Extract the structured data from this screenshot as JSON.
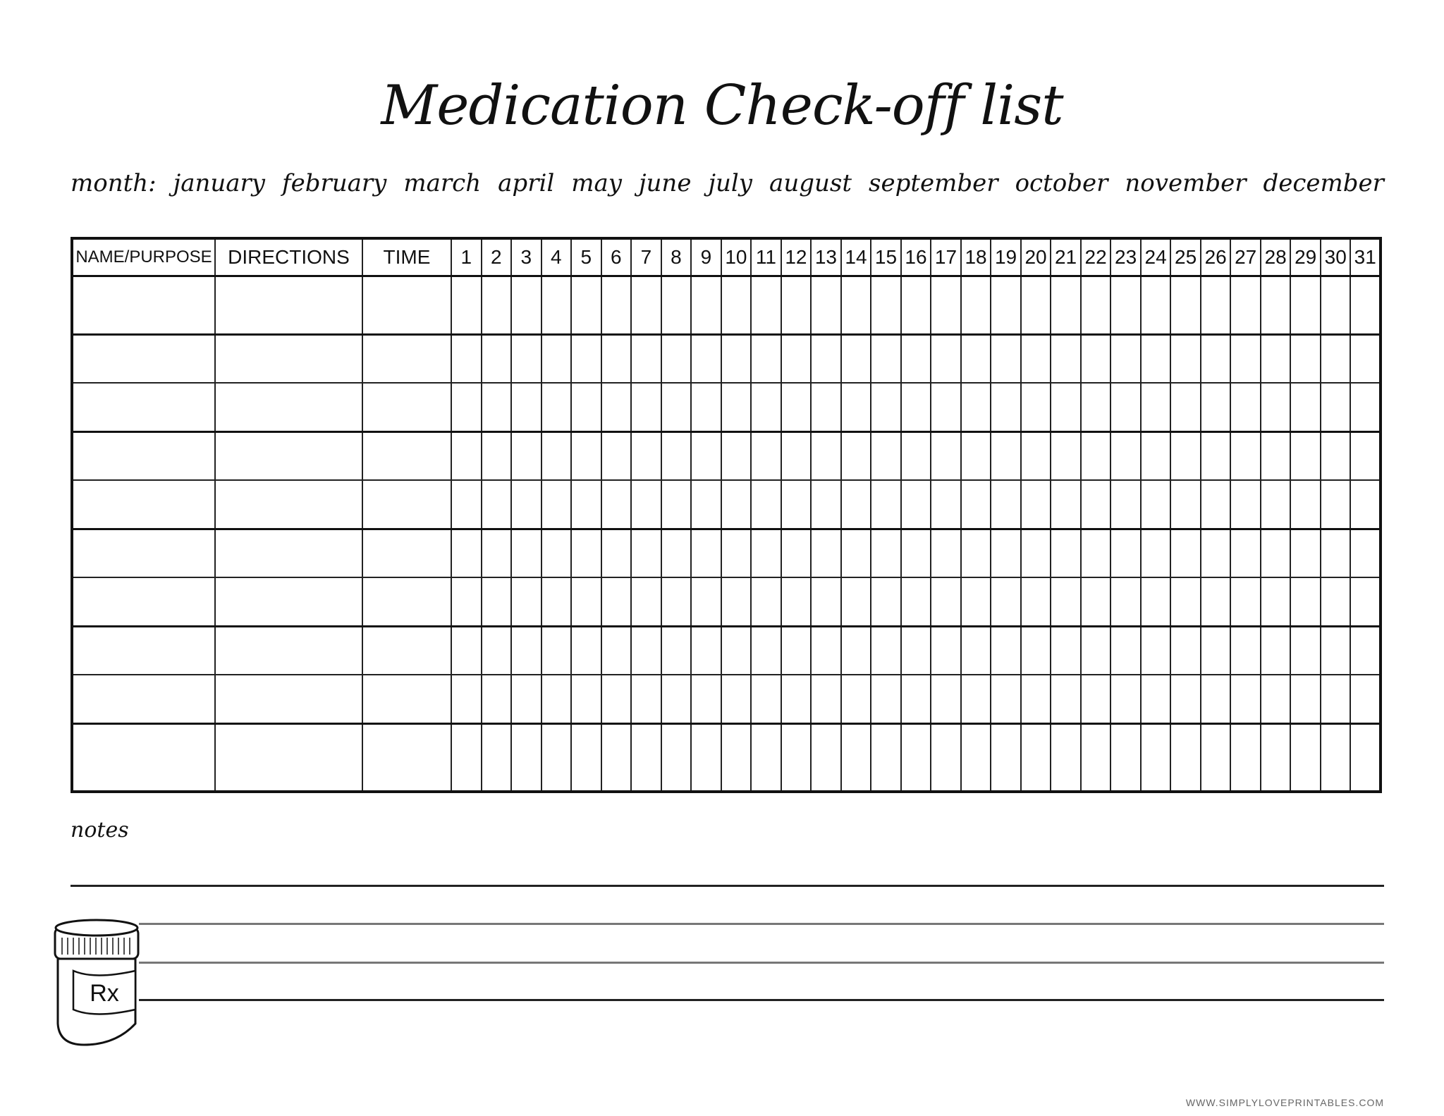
{
  "title": "Medication Check-off list",
  "month_label": "month:",
  "months": [
    "january",
    "february",
    "march",
    "april",
    "may",
    "june",
    "july",
    "august",
    "september",
    "october",
    "november",
    "december"
  ],
  "table": {
    "headers": [
      "NAME/PURPOSE",
      "DIRECTIONS",
      "TIME"
    ],
    "days": [
      "1",
      "2",
      "3",
      "4",
      "5",
      "6",
      "7",
      "8",
      "9",
      "10",
      "11",
      "12",
      "13",
      "14",
      "15",
      "16",
      "17",
      "18",
      "19",
      "20",
      "21",
      "22",
      "23",
      "24",
      "25",
      "26",
      "27",
      "28",
      "29",
      "30",
      "31"
    ],
    "row_count": 10
  },
  "notes_label": "notes",
  "bottle_label": "Rx",
  "footer": "WWW.SIMPLYLOVEPRINTABLES.COM"
}
